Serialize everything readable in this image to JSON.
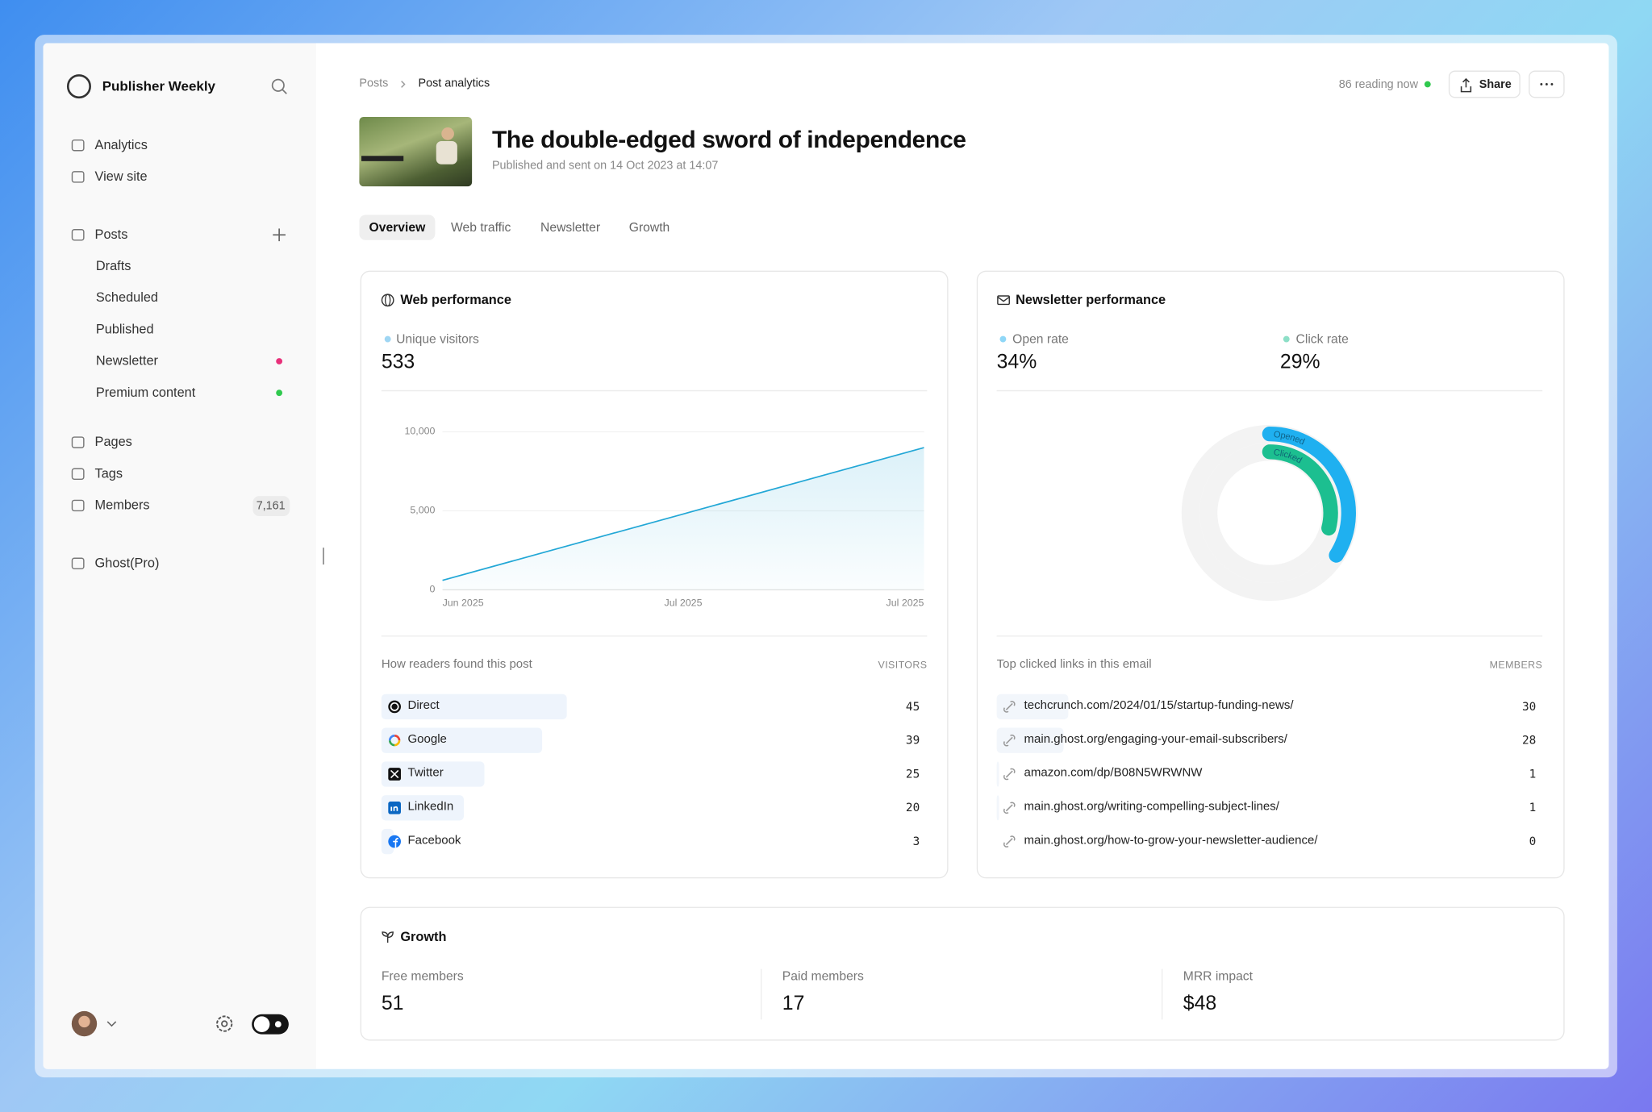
{
  "sidebar": {
    "brand": "Publisher Weekly",
    "primary": [
      "Analytics",
      "View site"
    ],
    "posts": "Posts",
    "post_items": [
      "Drafts",
      "Scheduled",
      "Published",
      "Newsletter",
      "Premium content"
    ],
    "secondary": [
      "Pages",
      "Tags",
      "Members"
    ],
    "members_count": "7,161",
    "ghost": "Ghost(Pro)"
  },
  "header": {
    "breadcrumb": [
      "Posts",
      "Post analytics"
    ],
    "reading_now": "86 reading now",
    "share": "Share"
  },
  "post": {
    "title": "The double-edged sword of independence",
    "published": "Published and sent on 14 Oct 2023 at 14:07"
  },
  "tabs": [
    "Overview",
    "Web traffic",
    "Newsletter",
    "Growth"
  ],
  "web": {
    "title": "Web performance",
    "metric_label": "Unique visitors",
    "metric_value": 533,
    "chart": {
      "type": "line",
      "categories": [
        "Jun 2025",
        "Jul 2025",
        "Jul 2025"
      ],
      "values": [
        600,
        4800,
        9000
      ],
      "color": "#22a7d6",
      "ylim": [
        0,
        10000
      ],
      "yticks": [
        0,
        {
          "value": 5000,
          "label": "5,000"
        },
        {
          "value": 10000,
          "label": "10,000"
        }
      ],
      "grid": true
    },
    "sources_title": "How readers found this post",
    "sources_column": "VISITORS",
    "sources": [
      {
        "name": "Direct",
        "visitors": 45
      },
      {
        "name": "Google",
        "visitors": 39
      },
      {
        "name": "Twitter",
        "visitors": 25
      },
      {
        "name": "LinkedIn",
        "visitors": 20
      },
      {
        "name": "Facebook",
        "visitors": 3
      }
    ]
  },
  "newsletter": {
    "title": "Newsletter performance",
    "chart": {
      "type": "radial",
      "series": [
        {
          "name": "Opened",
          "label": "Open rate",
          "value": 34,
          "value_label": "34%",
          "color": "#1fb0f0"
        },
        {
          "name": "Clicked",
          "label": "Click rate",
          "value": 29,
          "value_label": "29%",
          "color": "#1cbf90"
        }
      ]
    },
    "links_title": "Top clicked links in this email",
    "links_column": "MEMBERS",
    "links": [
      {
        "url": "techcrunch.com/2024/01/15/startup-funding-news/",
        "members": 30
      },
      {
        "url": "main.ghost.org/engaging-your-email-subscribers/",
        "members": 28
      },
      {
        "url": "amazon.com/dp/B08N5WRWNW",
        "members": 1
      },
      {
        "url": "main.ghost.org/writing-compelling-subject-lines/",
        "members": 1
      },
      {
        "url": "main.ghost.org/how-to-grow-your-newsletter-audience/",
        "members": 0
      }
    ]
  },
  "growth": {
    "title": "Growth",
    "metrics": [
      {
        "label": "Free members",
        "value": 51
      },
      {
        "label": "Paid members",
        "value": 17
      },
      {
        "label": "MRR impact",
        "value": "$48"
      }
    ]
  }
}
